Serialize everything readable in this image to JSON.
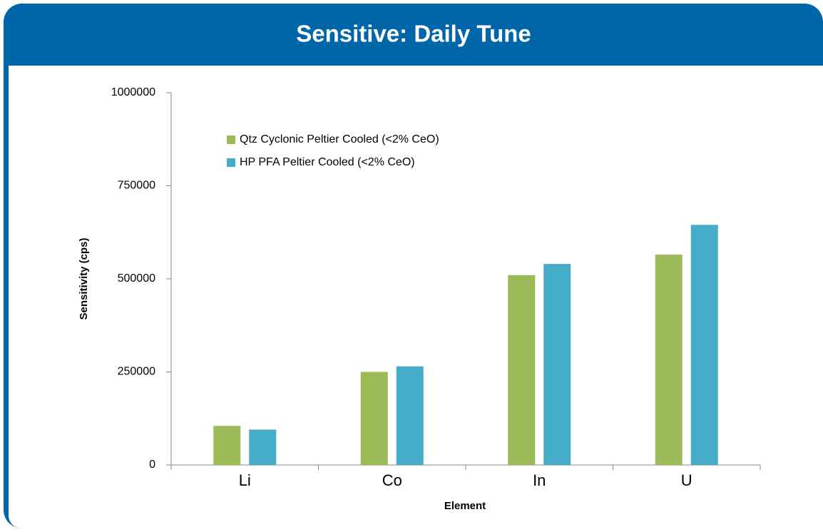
{
  "chart_data": {
    "type": "bar",
    "title": "Sensitive: Daily Tune",
    "x_label": "Element",
    "y_label": "Sensitivity (cps)",
    "categories": [
      "Li",
      "Co",
      "In",
      "U"
    ],
    "series": [
      {
        "name": "Qtz Cyclonic Peltier Cooled (<2% CeO)",
        "color": "#9bbb59",
        "values": [
          105000,
          250000,
          510000,
          565000
        ]
      },
      {
        "name": "HP PFA Peltier Cooled (<2% CeO)",
        "color": "#46adc8",
        "values": [
          95000,
          265000,
          540000,
          645000
        ]
      }
    ],
    "ylim": [
      0,
      1000000
    ],
    "yticks": [
      0,
      250000,
      500000,
      750000,
      1000000
    ],
    "grid": false,
    "legend": "upper left"
  }
}
